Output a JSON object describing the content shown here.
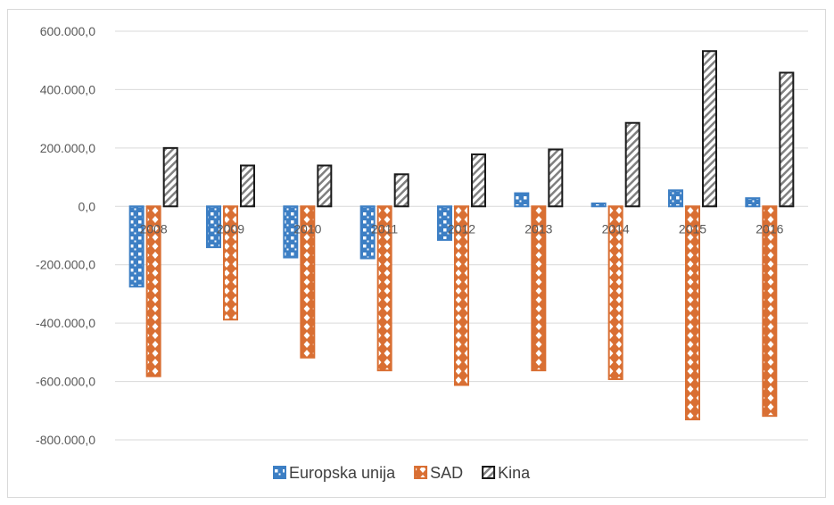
{
  "chart_data": {
    "type": "bar",
    "categories": [
      "2008",
      "2009",
      "2010",
      "2011",
      "2012",
      "2013",
      "2014",
      "2015",
      "2016"
    ],
    "series": [
      {
        "name": "Europska unija",
        "values": [
          -275000,
          -140000,
          -175000,
          -178000,
          -115000,
          45000,
          10000,
          55000,
          28000
        ]
      },
      {
        "name": "SAD",
        "values": [
          -582000,
          -388000,
          -518000,
          -562000,
          -612000,
          -562000,
          -592000,
          -730000,
          -718000
        ]
      },
      {
        "name": "Kina",
        "values": [
          200000,
          140000,
          140000,
          110000,
          178000,
          195000,
          286000,
          532000,
          458000
        ]
      }
    ],
    "yticks": [
      "600.000,0",
      "400.000,0",
      "200.000,0",
      "0,0",
      "-200.000,0",
      "-400.000,0",
      "-600.000,0",
      "-800.000,0"
    ],
    "ylim": [
      -800000,
      600000
    ],
    "grid": true,
    "legend_position": "bottom"
  },
  "colors": {
    "Europska unija": "#3d7fc4",
    "SAD": "#d96f33",
    "Kina": "#1a1a1a",
    "grid": "#d9d9d9",
    "axis": "#bfbfbf"
  }
}
